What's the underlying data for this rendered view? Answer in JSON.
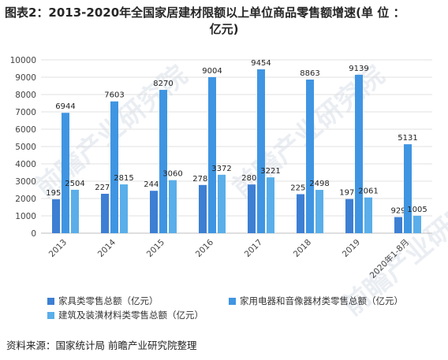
{
  "header": {
    "title_line1": "图表2：2013-2020年全国家居建材限额以上单位商品零售额增速(单 位 ：",
    "title_line2": "亿元)"
  },
  "chart_data": {
    "type": "bar",
    "categories": [
      "2013",
      "2014",
      "2015",
      "2016",
      "2017",
      "2018",
      "2019",
      "2020年1-8月"
    ],
    "ylim": [
      0,
      10000
    ],
    "yticks": [
      0,
      1000,
      2000,
      3000,
      4000,
      5000,
      6000,
      7000,
      8000,
      9000,
      10000
    ],
    "grid": true,
    "legend_position": "bottom",
    "series": [
      {
        "name": "家具类零售总额（亿元）",
        "color": "#3d7fd3",
        "values": [
          1958,
          2273,
          2445,
          2781,
          2809,
          2250,
          1970,
          929
        ]
      },
      {
        "name": "家用电器和音像器材类零售总额（亿元）",
        "color": "#3f95e2",
        "values": [
          6944,
          7603,
          8270,
          9004,
          9454,
          8863,
          9139,
          5131
        ]
      },
      {
        "name": "建筑及装潢材料类零售总额（亿元）",
        "color": "#5aaee9",
        "values": [
          2504,
          2815,
          3060,
          3372,
          3221,
          2498,
          2061,
          1005
        ]
      }
    ]
  },
  "watermark": "前瞻产业研究院",
  "footer": {
    "source": "资料来源：国家统计局 前瞻产业研究院整理"
  }
}
